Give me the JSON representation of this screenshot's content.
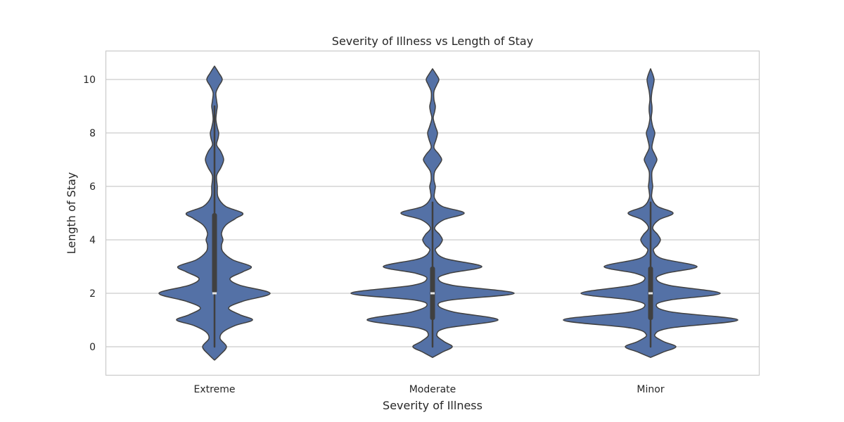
{
  "chart_data": {
    "type": "violin",
    "title": "Severity of Illness vs Length of Stay",
    "xlabel": "Severity of Illness",
    "ylabel": "Length of Stay",
    "categories": [
      "Extreme",
      "Moderate",
      "Minor"
    ],
    "ylim": [
      -1.1,
      11.1
    ],
    "yticks": [
      0,
      2,
      4,
      6,
      8,
      10
    ],
    "grid": true,
    "legend": null,
    "colors": {
      "violin_fill": "#5471a6",
      "violin_edge": "#404040",
      "box": "#404040",
      "median": "#e6e6e6",
      "grid": "#cccccc",
      "frame": "#cccccc"
    },
    "series": [
      {
        "name": "Extreme",
        "quartiles": {
          "whisker_low": 0,
          "q1": 2,
          "median": 2,
          "q3": 5,
          "whisker_high": 9
        },
        "kde_range": [
          -0.5,
          10.5
        ],
        "profile": [
          [
            -0.5,
            0
          ],
          [
            -0.3,
            8
          ],
          [
            0.0,
            17
          ],
          [
            0.3,
            8
          ],
          [
            0.55,
            12
          ],
          [
            0.8,
            30
          ],
          [
            1.0,
            54
          ],
          [
            1.2,
            36
          ],
          [
            1.45,
            20
          ],
          [
            1.7,
            40
          ],
          [
            2.0,
            79
          ],
          [
            2.3,
            36
          ],
          [
            2.55,
            22
          ],
          [
            2.8,
            40
          ],
          [
            3.0,
            52
          ],
          [
            3.25,
            26
          ],
          [
            3.55,
            12
          ],
          [
            3.8,
            10
          ],
          [
            4.0,
            12
          ],
          [
            4.25,
            10
          ],
          [
            4.55,
            16
          ],
          [
            4.8,
            30
          ],
          [
            5.0,
            40
          ],
          [
            5.25,
            16
          ],
          [
            5.6,
            5
          ],
          [
            6.0,
            4
          ],
          [
            6.4,
            3
          ],
          [
            6.7,
            9
          ],
          [
            7.0,
            13
          ],
          [
            7.3,
            9
          ],
          [
            7.55,
            3
          ],
          [
            7.8,
            5
          ],
          [
            8.0,
            6
          ],
          [
            8.2,
            4
          ],
          [
            8.5,
            2
          ],
          [
            8.8,
            3
          ],
          [
            9.0,
            4
          ],
          [
            9.2,
            3
          ],
          [
            9.5,
            2
          ],
          [
            9.75,
            6
          ],
          [
            10.0,
            11
          ],
          [
            10.25,
            6
          ],
          [
            10.5,
            0
          ]
        ]
      },
      {
        "name": "Moderate",
        "quartiles": {
          "whisker_low": 0,
          "q1": 1,
          "median": 2,
          "q3": 3,
          "whisker_high": 5.4
        },
        "kde_range": [
          -0.4,
          10.4
        ],
        "profile": [
          [
            -0.4,
            0
          ],
          [
            -0.2,
            14
          ],
          [
            0.0,
            28
          ],
          [
            0.2,
            16
          ],
          [
            0.45,
            6
          ],
          [
            0.7,
            20
          ],
          [
            1.0,
            93
          ],
          [
            1.3,
            30
          ],
          [
            1.55,
            8
          ],
          [
            1.75,
            26
          ],
          [
            2.0,
            116
          ],
          [
            2.3,
            28
          ],
          [
            2.55,
            8
          ],
          [
            2.75,
            24
          ],
          [
            3.0,
            70
          ],
          [
            3.3,
            18
          ],
          [
            3.6,
            4
          ],
          [
            3.8,
            10
          ],
          [
            4.0,
            14
          ],
          [
            4.2,
            10
          ],
          [
            4.45,
            3
          ],
          [
            4.75,
            16
          ],
          [
            5.0,
            45
          ],
          [
            5.25,
            14
          ],
          [
            5.55,
            3
          ],
          [
            5.8,
            3
          ],
          [
            6.0,
            4
          ],
          [
            6.25,
            2
          ],
          [
            6.55,
            3
          ],
          [
            6.8,
            9
          ],
          [
            7.0,
            13
          ],
          [
            7.2,
            9
          ],
          [
            7.45,
            2
          ],
          [
            7.75,
            5
          ],
          [
            8.0,
            7
          ],
          [
            8.25,
            4
          ],
          [
            8.55,
            1
          ],
          [
            8.8,
            3
          ],
          [
            9.0,
            4
          ],
          [
            9.25,
            2
          ],
          [
            9.55,
            2
          ],
          [
            9.8,
            6
          ],
          [
            10.0,
            9
          ],
          [
            10.2,
            5
          ],
          [
            10.4,
            0
          ]
        ]
      },
      {
        "name": "Minor",
        "quartiles": {
          "whisker_low": 0,
          "q1": 1,
          "median": 2,
          "q3": 3,
          "whisker_high": 5.4
        },
        "kde_range": [
          -0.4,
          10.4
        ],
        "profile": [
          [
            -0.4,
            0
          ],
          [
            -0.2,
            18
          ],
          [
            0.0,
            36
          ],
          [
            0.2,
            18
          ],
          [
            0.45,
            6
          ],
          [
            0.7,
            28
          ],
          [
            1.0,
            124
          ],
          [
            1.3,
            30
          ],
          [
            1.55,
            8
          ],
          [
            1.75,
            28
          ],
          [
            2.0,
            99
          ],
          [
            2.3,
            26
          ],
          [
            2.55,
            8
          ],
          [
            2.75,
            22
          ],
          [
            3.0,
            66
          ],
          [
            3.3,
            16
          ],
          [
            3.6,
            4
          ],
          [
            3.8,
            10
          ],
          [
            4.0,
            14
          ],
          [
            4.2,
            10
          ],
          [
            4.45,
            3
          ],
          [
            4.75,
            12
          ],
          [
            5.0,
            32
          ],
          [
            5.25,
            10
          ],
          [
            5.55,
            2
          ],
          [
            5.8,
            2
          ],
          [
            6.0,
            3
          ],
          [
            6.25,
            2
          ],
          [
            6.55,
            2
          ],
          [
            6.8,
            6
          ],
          [
            7.0,
            9
          ],
          [
            7.2,
            6
          ],
          [
            7.45,
            2
          ],
          [
            7.75,
            4
          ],
          [
            8.0,
            6
          ],
          [
            8.25,
            3
          ],
          [
            8.55,
            1
          ],
          [
            8.8,
            2
          ],
          [
            9.0,
            2
          ],
          [
            9.25,
            1
          ],
          [
            9.55,
            2
          ],
          [
            9.8,
            4
          ],
          [
            10.0,
            5
          ],
          [
            10.2,
            3
          ],
          [
            10.4,
            0
          ]
        ]
      }
    ]
  }
}
